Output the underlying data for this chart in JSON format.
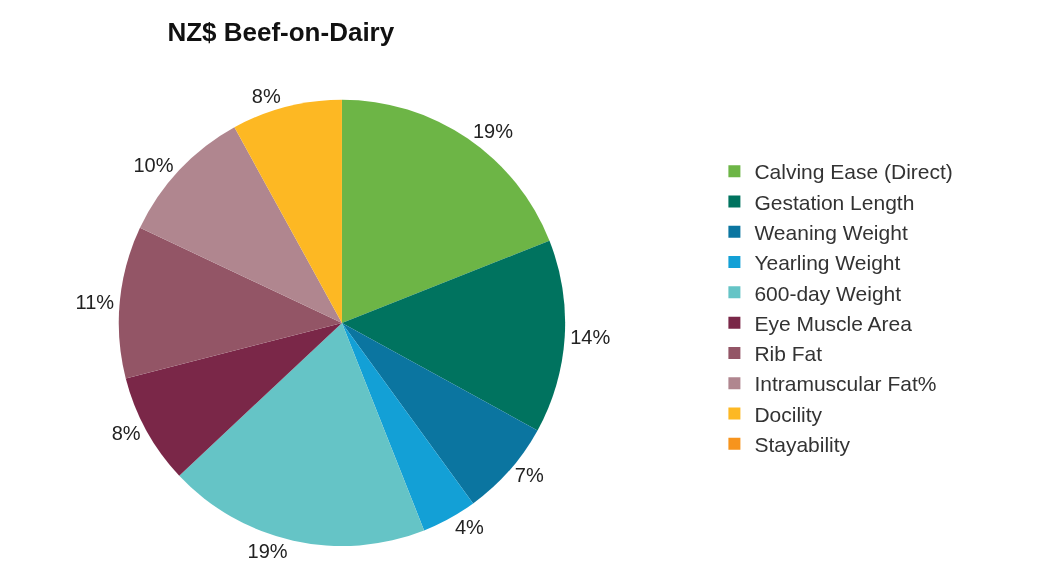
{
  "chart_data": {
    "type": "pie",
    "title": "NZ$ Beef-on-Dairy",
    "categories": [
      "Calving Ease (Direct)",
      "Gestation Length",
      "Weaning Weight",
      "Yearling Weight",
      "600-day Weight",
      "Eye Muscle Area",
      "Rib Fat",
      "Intramuscular Fat%",
      "Docility",
      "Stayability"
    ],
    "values": [
      19,
      14,
      7,
      4,
      19,
      8,
      11,
      10,
      8,
      0
    ],
    "value_labels": [
      "19%",
      "14%",
      "7%",
      "4%",
      "19%",
      "8%",
      "11%",
      "10%",
      "8%",
      null
    ],
    "colors": [
      "#6db546",
      "#00735f",
      "#0b75a0",
      "#13a0d6",
      "#65c4c6",
      "#7a2748",
      "#935566",
      "#b0868f",
      "#fdb823",
      "#f7941d"
    ],
    "legend": "right"
  }
}
